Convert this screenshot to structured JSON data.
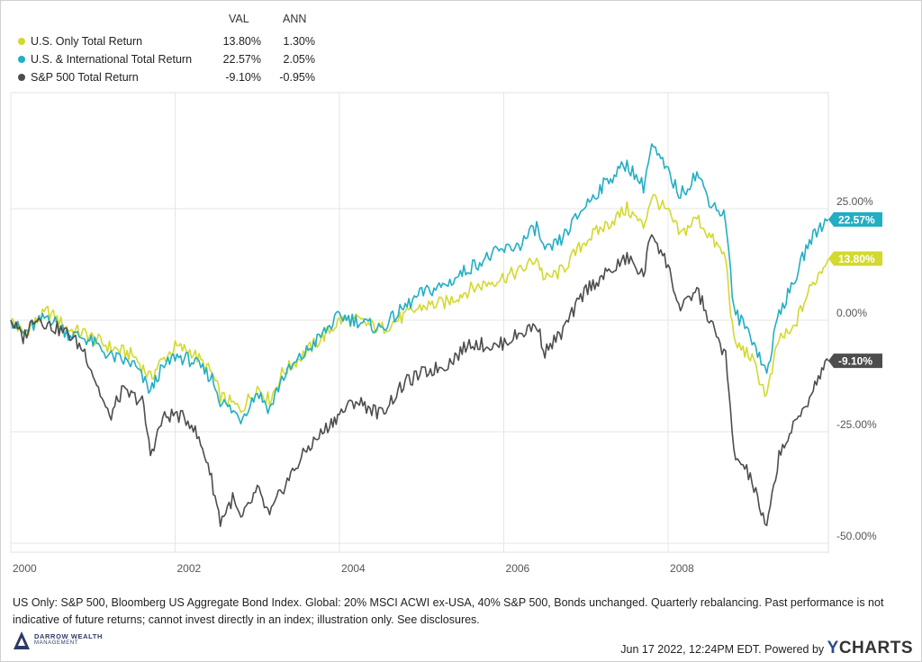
{
  "legend": {
    "header_val": "VAL",
    "header_ann": "ANN",
    "rows": [
      {
        "name": "U.S. Only Total Return",
        "val": "13.80%",
        "ann": "1.30%",
        "color": "#d3d92e"
      },
      {
        "name": "U.S. & International Total Return",
        "val": "22.57%",
        "ann": "2.05%",
        "color": "#22aec4"
      },
      {
        "name": "S&P 500 Total Return",
        "val": "-9.10%",
        "ann": "-0.95%",
        "color": "#4d4d4d"
      }
    ]
  },
  "chart_data": {
    "type": "line",
    "x_unit": "year",
    "x_ticks": [
      "2000",
      "2002",
      "2004",
      "2006",
      "2008"
    ],
    "y_ticks": [
      "25.00%",
      "0.00%",
      "-25.00%",
      "-50.00%"
    ],
    "ylim": [
      -50,
      45
    ],
    "xlim": [
      2000.0,
      2009.95
    ],
    "grid": true,
    "series": [
      {
        "name": "U.S. Only Total Return",
        "color": "#d3d92e",
        "end_label": "13.80%",
        "points": [
          [
            2000.0,
            0
          ],
          [
            2000.15,
            -3
          ],
          [
            2000.45,
            2
          ],
          [
            2000.7,
            -2
          ],
          [
            2000.9,
            -3
          ],
          [
            2001.0,
            -4
          ],
          [
            2001.2,
            -6
          ],
          [
            2001.5,
            -8
          ],
          [
            2001.7,
            -13
          ],
          [
            2001.8,
            -10
          ],
          [
            2002.0,
            -6
          ],
          [
            2002.2,
            -7
          ],
          [
            2002.45,
            -12
          ],
          [
            2002.55,
            -17
          ],
          [
            2002.8,
            -20
          ],
          [
            2003.0,
            -15
          ],
          [
            2003.15,
            -18
          ],
          [
            2003.3,
            -12
          ],
          [
            2003.6,
            -7
          ],
          [
            2003.9,
            -2
          ],
          [
            2004.0,
            0
          ],
          [
            2004.2,
            0
          ],
          [
            2004.5,
            -2
          ],
          [
            2004.8,
            1
          ],
          [
            2005.0,
            3
          ],
          [
            2005.3,
            4
          ],
          [
            2005.6,
            7
          ],
          [
            2005.9,
            9
          ],
          [
            2006.2,
            11
          ],
          [
            2006.4,
            14
          ],
          [
            2006.5,
            9
          ],
          [
            2006.7,
            11
          ],
          [
            2007.0,
            18
          ],
          [
            2007.3,
            22
          ],
          [
            2007.5,
            25
          ],
          [
            2007.7,
            21
          ],
          [
            2007.8,
            28
          ],
          [
            2008.0,
            24
          ],
          [
            2008.15,
            19
          ],
          [
            2008.35,
            23
          ],
          [
            2008.5,
            19
          ],
          [
            2008.7,
            14
          ],
          [
            2008.8,
            -5
          ],
          [
            2009.0,
            -8
          ],
          [
            2009.2,
            -17
          ],
          [
            2009.35,
            -4
          ],
          [
            2009.5,
            -3
          ],
          [
            2009.7,
            6
          ],
          [
            2009.85,
            11
          ],
          [
            2009.95,
            13.8
          ]
        ]
      },
      {
        "name": "U.S. & International Total Return",
        "color": "#22aec4",
        "end_label": "22.57%",
        "points": [
          [
            2000.0,
            0
          ],
          [
            2000.15,
            -3
          ],
          [
            2000.45,
            1
          ],
          [
            2000.7,
            -3
          ],
          [
            2000.9,
            -4
          ],
          [
            2001.0,
            -5
          ],
          [
            2001.2,
            -8
          ],
          [
            2001.5,
            -10
          ],
          [
            2001.7,
            -16
          ],
          [
            2001.8,
            -12
          ],
          [
            2002.0,
            -8
          ],
          [
            2002.2,
            -9
          ],
          [
            2002.45,
            -13
          ],
          [
            2002.55,
            -18
          ],
          [
            2002.8,
            -22
          ],
          [
            2003.0,
            -16
          ],
          [
            2003.15,
            -20
          ],
          [
            2003.3,
            -13
          ],
          [
            2003.6,
            -7
          ],
          [
            2003.9,
            -1
          ],
          [
            2004.0,
            1
          ],
          [
            2004.2,
            0
          ],
          [
            2004.5,
            -2
          ],
          [
            2004.8,
            3
          ],
          [
            2005.0,
            6
          ],
          [
            2005.3,
            8
          ],
          [
            2005.6,
            12
          ],
          [
            2005.9,
            15
          ],
          [
            2006.2,
            17
          ],
          [
            2006.4,
            21
          ],
          [
            2006.5,
            15
          ],
          [
            2006.7,
            18
          ],
          [
            2007.0,
            26
          ],
          [
            2007.3,
            32
          ],
          [
            2007.5,
            35
          ],
          [
            2007.7,
            30
          ],
          [
            2007.8,
            39
          ],
          [
            2008.0,
            33
          ],
          [
            2008.15,
            28
          ],
          [
            2008.35,
            33
          ],
          [
            2008.5,
            27
          ],
          [
            2008.7,
            23
          ],
          [
            2008.8,
            2
          ],
          [
            2009.0,
            -3
          ],
          [
            2009.2,
            -12
          ],
          [
            2009.35,
            2
          ],
          [
            2009.5,
            7
          ],
          [
            2009.7,
            17
          ],
          [
            2009.85,
            21
          ],
          [
            2009.95,
            22.57
          ]
        ]
      },
      {
        "name": "S&P 500 Total Return",
        "color": "#4d4d4d",
        "end_label": "-9.10%",
        "points": [
          [
            2000.0,
            0
          ],
          [
            2000.15,
            -4
          ],
          [
            2000.3,
            1
          ],
          [
            2000.45,
            -1
          ],
          [
            2000.7,
            -3
          ],
          [
            2000.9,
            -7
          ],
          [
            2001.0,
            -12
          ],
          [
            2001.2,
            -22
          ],
          [
            2001.35,
            -16
          ],
          [
            2001.6,
            -18
          ],
          [
            2001.7,
            -30
          ],
          [
            2001.85,
            -22
          ],
          [
            2002.0,
            -21
          ],
          [
            2002.2,
            -23
          ],
          [
            2002.4,
            -32
          ],
          [
            2002.55,
            -45
          ],
          [
            2002.7,
            -40
          ],
          [
            2002.8,
            -45
          ],
          [
            2003.0,
            -38
          ],
          [
            2003.15,
            -44
          ],
          [
            2003.3,
            -38
          ],
          [
            2003.6,
            -29
          ],
          [
            2003.9,
            -23
          ],
          [
            2004.0,
            -21
          ],
          [
            2004.2,
            -18
          ],
          [
            2004.5,
            -21
          ],
          [
            2004.8,
            -14
          ],
          [
            2005.0,
            -12
          ],
          [
            2005.3,
            -10
          ],
          [
            2005.6,
            -5
          ],
          [
            2005.9,
            -6
          ],
          [
            2006.2,
            -3
          ],
          [
            2006.4,
            -1
          ],
          [
            2006.5,
            -7
          ],
          [
            2006.7,
            -3
          ],
          [
            2007.0,
            7
          ],
          [
            2007.3,
            11
          ],
          [
            2007.5,
            14
          ],
          [
            2007.7,
            10
          ],
          [
            2007.8,
            20
          ],
          [
            2008.0,
            12
          ],
          [
            2008.15,
            2
          ],
          [
            2008.35,
            7
          ],
          [
            2008.5,
            0
          ],
          [
            2008.7,
            -8
          ],
          [
            2008.8,
            -30
          ],
          [
            2009.0,
            -35
          ],
          [
            2009.2,
            -47
          ],
          [
            2009.35,
            -30
          ],
          [
            2009.5,
            -25
          ],
          [
            2009.7,
            -18
          ],
          [
            2009.85,
            -12
          ],
          [
            2009.95,
            -9.1
          ]
        ]
      }
    ]
  },
  "footnote": "US Only: S&P 500, Bloomberg US Aggregate Bond Index. Global: 20% MSCI ACWI ex-USA, 40% S&P 500, Bonds unchanged. Quarterly rebalancing.  Past performance is not indicative of future returns; cannot invest directly in an index; illustration only. See disclosures.",
  "logo": {
    "line1": "DARROW WEALTH",
    "line2": "MANAGEMENT"
  },
  "footer": {
    "timestamp": "Jun 17 2022, 12:24PM EDT.",
    "powered_by": "Powered by",
    "brand_y": "Y",
    "brand_rest": "CHARTS"
  }
}
